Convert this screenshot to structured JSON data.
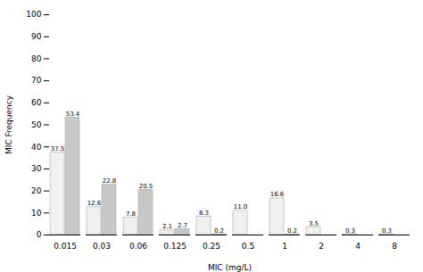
{
  "chart_data": {
    "type": "bar",
    "categories": [
      "0.015",
      "0.03",
      "0.06",
      "0.125",
      "0.25",
      "0.5",
      "1",
      "2",
      "4",
      "8"
    ],
    "series": [
      {
        "color": "#f0f0f0",
        "values": [
          37.5,
          12.6,
          7.8,
          2.1,
          8.3,
          11.0,
          16.6,
          3.5,
          0.3,
          0.3
        ],
        "value_labels": [
          "37.5",
          "12.6",
          "7.8",
          "2.1",
          "8.3",
          "11.0",
          "16.6",
          "3.5",
          "0.3",
          "0.3"
        ]
      },
      {
        "color": "#c8c8c8",
        "values": [
          53.4,
          22.8,
          20.5,
          2.7,
          0.2,
          null,
          0.2,
          null,
          null,
          null
        ],
        "value_labels": [
          "53.4",
          "22.8",
          "20.5",
          "2.7",
          "0.2",
          null,
          "0.2",
          null,
          null,
          null
        ]
      }
    ],
    "xlabel": "MIC (mg/L)",
    "ylabel": "MIC Frequency",
    "ylim": [
      0,
      100
    ],
    "yticks": [
      0,
      10,
      20,
      30,
      40,
      50,
      60,
      70,
      80,
      90,
      100
    ],
    "data_labels": true,
    "grid": false
  }
}
